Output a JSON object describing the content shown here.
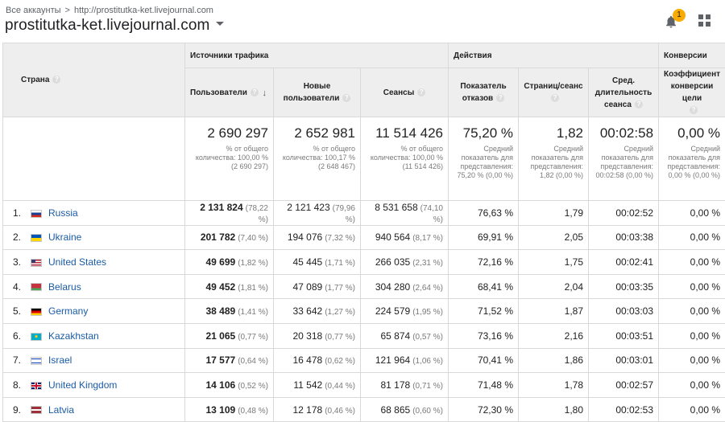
{
  "header": {
    "breadcrumb_all": "Все аккаунты",
    "breadcrumb_sep": ">",
    "breadcrumb_url": "http://prostitutka-ket.livejournal.com",
    "property_name": "prostitutka-ket.livejournal.com",
    "notification_count": "1",
    "icons": [
      "caret-down-icon",
      "bell-icon",
      "apps-grid-icon"
    ],
    "badge_color": "#f9ab00"
  },
  "table": {
    "country_header": "Страна",
    "groups": {
      "traffic": "Источники трафика",
      "actions": "Действия",
      "conversions": "Конверсии"
    },
    "columns": {
      "users": "Пользователи",
      "new_users": "Новые пользователи",
      "sessions": "Сеансы",
      "bounce_rate": "Показатель отказов",
      "pages_per_session": "Страниц/сеанс",
      "avg_duration": "Сред. длительность сеанса",
      "conversion_rate": "Коэффициент конверсии цели"
    },
    "totals": {
      "users": {
        "value": "2 690 297",
        "note": "% от общего количества: 100,00 % (2 690 297)"
      },
      "new_users": {
        "value": "2 652 981",
        "note": "% от общего количества: 100,17 % (2 648 467)"
      },
      "sessions": {
        "value": "11 514 426",
        "note": "% от общего количества: 100,00 % (11 514 426)"
      },
      "bounce_rate": {
        "value": "75,20 %",
        "note": "Средний показатель для представления: 75,20 % (0,00 %)"
      },
      "pages_per_session": {
        "value": "1,82",
        "note": "Средний показатель для представления: 1,82 (0,00 %)"
      },
      "avg_duration": {
        "value": "00:02:58",
        "note": "Средний показатель для представления: 00:02:58 (0,00 %)"
      },
      "conversion_rate": {
        "value": "0,00 %",
        "note": "Средний показатель для представления: 0,00 % (0,00 %)"
      }
    },
    "rows": [
      {
        "idx": "1.",
        "country": "Russia",
        "users": "2 131 824",
        "users_pct": "(78,22 %)",
        "new_users": "2 121 423",
        "new_users_pct": "(79,96 %)",
        "sessions": "8 531 658",
        "sessions_pct": "(74,10 %)",
        "bounce": "76,63 %",
        "pps": "1,79",
        "dur": "00:02:52",
        "conv": "0,00 %"
      },
      {
        "idx": "2.",
        "country": "Ukraine",
        "users": "201 782",
        "users_pct": "(7,40 %)",
        "new_users": "194 076",
        "new_users_pct": "(7,32 %)",
        "sessions": "940 564",
        "sessions_pct": "(8,17 %)",
        "bounce": "69,91 %",
        "pps": "2,05",
        "dur": "00:03:38",
        "conv": "0,00 %"
      },
      {
        "idx": "3.",
        "country": "United States",
        "users": "49 699",
        "users_pct": "(1,82 %)",
        "new_users": "45 445",
        "new_users_pct": "(1,71 %)",
        "sessions": "266 035",
        "sessions_pct": "(2,31 %)",
        "bounce": "72,16 %",
        "pps": "1,75",
        "dur": "00:02:41",
        "conv": "0,00 %"
      },
      {
        "idx": "4.",
        "country": "Belarus",
        "users": "49 452",
        "users_pct": "(1,81 %)",
        "new_users": "47 089",
        "new_users_pct": "(1,77 %)",
        "sessions": "304 280",
        "sessions_pct": "(2,64 %)",
        "bounce": "68,41 %",
        "pps": "2,04",
        "dur": "00:03:35",
        "conv": "0,00 %"
      },
      {
        "idx": "5.",
        "country": "Germany",
        "users": "38 489",
        "users_pct": "(1,41 %)",
        "new_users": "33 642",
        "new_users_pct": "(1,27 %)",
        "sessions": "224 579",
        "sessions_pct": "(1,95 %)",
        "bounce": "71,52 %",
        "pps": "1,87",
        "dur": "00:03:03",
        "conv": "0,00 %"
      },
      {
        "idx": "6.",
        "country": "Kazakhstan",
        "users": "21 065",
        "users_pct": "(0,77 %)",
        "new_users": "20 318",
        "new_users_pct": "(0,77 %)",
        "sessions": "65 874",
        "sessions_pct": "(0,57 %)",
        "bounce": "73,16 %",
        "pps": "2,16",
        "dur": "00:03:51",
        "conv": "0,00 %"
      },
      {
        "idx": "7.",
        "country": "Israel",
        "users": "17 577",
        "users_pct": "(0,64 %)",
        "new_users": "16 478",
        "new_users_pct": "(0,62 %)",
        "sessions": "121 964",
        "sessions_pct": "(1,06 %)",
        "bounce": "70,41 %",
        "pps": "1,86",
        "dur": "00:03:01",
        "conv": "0,00 %"
      },
      {
        "idx": "8.",
        "country": "United Kingdom",
        "users": "14 106",
        "users_pct": "(0,52 %)",
        "new_users": "11 542",
        "new_users_pct": "(0,44 %)",
        "sessions": "81 178",
        "sessions_pct": "(0,71 %)",
        "bounce": "71,48 %",
        "pps": "1,78",
        "dur": "00:02:57",
        "conv": "0,00 %"
      },
      {
        "idx": "9.",
        "country": "Latvia",
        "users": "13 109",
        "users_pct": "(0,48 %)",
        "new_users": "12 178",
        "new_users_pct": "(0,46 %)",
        "sessions": "68 865",
        "sessions_pct": "(0,60 %)",
        "bounce": "72,30 %",
        "pps": "1,80",
        "dur": "00:02:53",
        "conv": "0,00 %"
      }
    ],
    "flags": [
      {
        "name": "russia-flag-icon",
        "colors": [
          "#ffffff",
          "#1c3f94",
          "#d52b1e"
        ]
      },
      {
        "name": "ukraine-flag-icon",
        "colors": [
          "#0057b7",
          "#ffd700"
        ]
      },
      {
        "name": "us-flag-icon",
        "colors": [
          "#b22234",
          "#ffffff",
          "#3c3b6e"
        ]
      },
      {
        "name": "belarus-flag-icon",
        "colors": [
          "#c8313e",
          "#4aa657"
        ]
      },
      {
        "name": "germany-flag-icon",
        "colors": [
          "#000000",
          "#dd0000",
          "#ffce00"
        ]
      },
      {
        "name": "kazakhstan-flag-icon",
        "colors": [
          "#00afca",
          "#fec50c"
        ]
      },
      {
        "name": "israel-flag-icon",
        "colors": [
          "#ffffff",
          "#0038b8"
        ]
      },
      {
        "name": "uk-flag-icon",
        "colors": [
          "#012169",
          "#ffffff",
          "#c8102e"
        ]
      },
      {
        "name": "latvia-flag-icon",
        "colors": [
          "#9e3039",
          "#ffffff"
        ]
      }
    ],
    "link_color": "#1a5ba6"
  }
}
